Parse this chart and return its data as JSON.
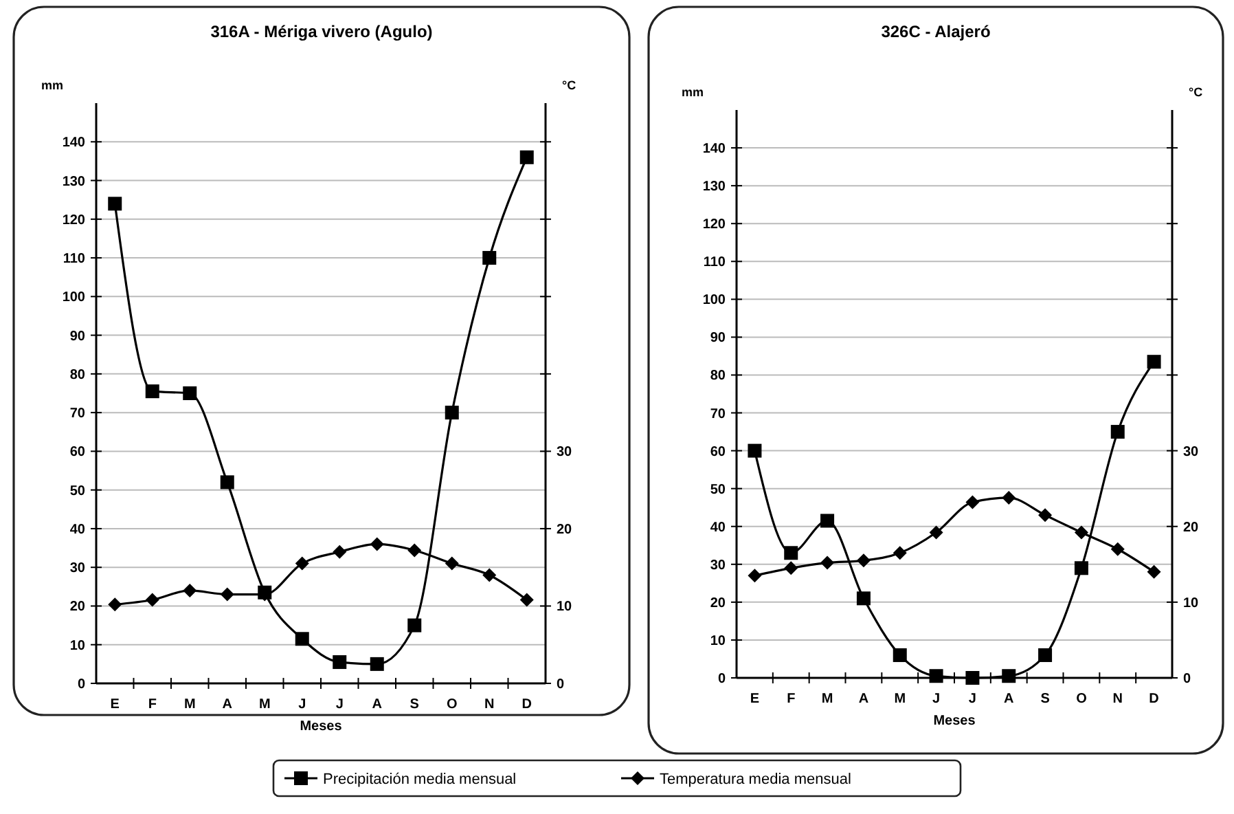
{
  "chart_data": [
    {
      "type": "line",
      "title": "316A - Mériga vivero (Agulo)",
      "xlabel": "Meses",
      "ylabel": "mm",
      "y2label": "°C",
      "categories": [
        "E",
        "F",
        "M",
        "A",
        "M",
        "J",
        "J",
        "A",
        "S",
        "O",
        "N",
        "D"
      ],
      "series": [
        {
          "name": "Precipitación media mensual",
          "color": "#000000",
          "marker": "square",
          "values": [
            124,
            75.5,
            75,
            52,
            23.5,
            11.5,
            5.5,
            5,
            15,
            70,
            110,
            136
          ]
        },
        {
          "name": "Temperatura media mensual",
          "color": "#000000",
          "marker": "diamond",
          "axis": "y2",
          "values": [
            10.2,
            10.8,
            12,
            11.5,
            11.5,
            15.5,
            17,
            18,
            17.2,
            15.5,
            14,
            10.8
          ]
        }
      ],
      "ylim": [
        0,
        150
      ],
      "yticks": [
        0,
        10,
        20,
        30,
        40,
        50,
        60,
        70,
        80,
        90,
        100,
        110,
        120,
        130,
        140
      ],
      "y2lim": [
        0,
        75
      ],
      "y2ticks": [
        0,
        10,
        20,
        30,
        {
          "value": 40,
          "label": null
        },
        {
          "value": 50,
          "label": null
        },
        {
          "value": 60,
          "label": null
        },
        {
          "value": 70,
          "label": null
        }
      ],
      "grid": "y",
      "legend": "bottom"
    },
    {
      "type": "line",
      "title": "326C - Alajeró",
      "xlabel": "Meses",
      "ylabel": "mm",
      "y2label": "°C",
      "categories": [
        "E",
        "F",
        "M",
        "A",
        "M",
        "J",
        "J",
        "A",
        "S",
        "O",
        "N",
        "D"
      ],
      "series": [
        {
          "color": "#000000",
          "marker": "square",
          "values": [
            60,
            33,
            41.5,
            21,
            6,
            0.5,
            0,
            0.5,
            6,
            29,
            65,
            83.5
          ]
        },
        {
          "color": "#000000",
          "marker": "diamond",
          "axis": "y2",
          "values": [
            13.5,
            14.5,
            15.2,
            15.5,
            16.5,
            19.2,
            23.2,
            23.8,
            21.5,
            19.2,
            17,
            14
          ]
        }
      ],
      "ylim": [
        0,
        150
      ],
      "yticks": [
        0,
        10,
        20,
        30,
        40,
        50,
        60,
        70,
        80,
        90,
        100,
        110,
        120,
        130,
        140
      ],
      "y2lim": [
        0,
        75
      ],
      "y2ticks": [
        0,
        10,
        20,
        30,
        {
          "value": 40,
          "label": null
        },
        {
          "value": 50,
          "label": null
        },
        {
          "value": 60,
          "label": null
        },
        {
          "value": 70,
          "label": null
        }
      ],
      "grid": "y"
    }
  ]
}
